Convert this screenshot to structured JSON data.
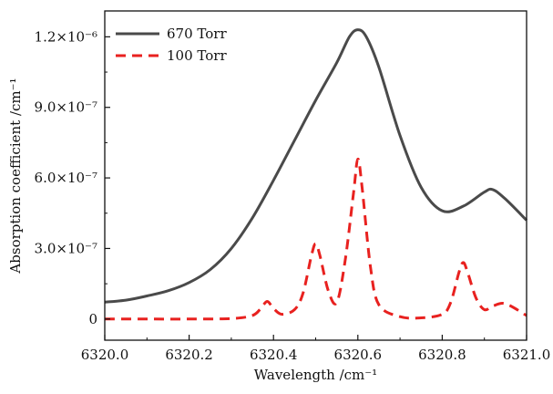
{
  "chart_data": {
    "type": "line",
    "title": "",
    "xlabel": "Wavelength /cm⁻¹",
    "ylabel": "Absorption coefficient /cm⁻¹",
    "xlim": [
      6320.0,
      6321.0
    ],
    "ylim": [
      -9e-08,
      1.31e-06
    ],
    "x_ticks": [
      6320.0,
      6320.2,
      6320.4,
      6320.6,
      6320.8,
      6321.0
    ],
    "x_tick_labels": [
      "6320.0",
      "6320.2",
      "6320.4",
      "6320.6",
      "6320.8",
      "6321.0"
    ],
    "y_ticks": [
      0,
      3e-07,
      6e-07,
      9e-07,
      1.2e-06
    ],
    "y_tick_labels": [
      "0",
      "3.0×10⁻⁷",
      "6.0×10⁻⁷",
      "9.0×10⁻⁷",
      "1.2×10⁻⁶"
    ],
    "grid": false,
    "legend_position": "top-left",
    "series": [
      {
        "name": "670 Torr",
        "color": "#4a4a4a",
        "style": "solid",
        "x": [
          6320.0,
          6320.05,
          6320.1,
          6320.15,
          6320.2,
          6320.25,
          6320.3,
          6320.35,
          6320.4,
          6320.45,
          6320.5,
          6320.55,
          6320.58,
          6320.6,
          6320.62,
          6320.65,
          6320.7,
          6320.75,
          6320.8,
          6320.85,
          6320.9,
          6320.92,
          6320.95,
          6321.0
        ],
        "y": [
          7.2e-08,
          8e-08,
          9.8e-08,
          1.2e-07,
          1.55e-07,
          2.1e-07,
          3e-07,
          4.3e-07,
          5.9e-07,
          7.6e-07,
          9.3e-07,
          1.09e-06,
          1.2e-06,
          1.23e-06,
          1.2e-06,
          1.07e-06,
          7.8e-07,
          5.6e-07,
          4.6e-07,
          4.8e-07,
          5.4e-07,
          5.5e-07,
          5.1e-07,
          4.2e-07
        ]
      },
      {
        "name": "100 Torr",
        "color": "#e8211f",
        "style": "dashed",
        "x": [
          6320.0,
          6320.1,
          6320.2,
          6320.3,
          6320.35,
          6320.37,
          6320.385,
          6320.4,
          6320.42,
          6320.45,
          6320.47,
          6320.49,
          6320.5,
          6320.51,
          6320.53,
          6320.55,
          6320.57,
          6320.59,
          6320.6,
          6320.61,
          6320.63,
          6320.65,
          6320.7,
          6320.75,
          6320.8,
          6320.82,
          6320.84,
          6320.85,
          6320.86,
          6320.88,
          6320.9,
          6320.92,
          6320.95,
          6321.0
        ],
        "y": [
          0,
          0,
          0,
          2e-09,
          1.5e-08,
          4.5e-08,
          7.5e-08,
          4.5e-08,
          2e-08,
          4e-08,
          1.1e-07,
          2.7e-07,
          3.2e-07,
          2.7e-07,
          1.2e-07,
          7e-08,
          2.5e-07,
          5.4e-07,
          6.8e-07,
          5.6e-07,
          2.2e-07,
          6e-08,
          1e-08,
          5e-09,
          2e-08,
          7e-08,
          2e-07,
          2.4e-07,
          2e-07,
          9e-08,
          4e-08,
          5.5e-08,
          6.5e-08,
          1.5e-08
        ]
      }
    ]
  }
}
